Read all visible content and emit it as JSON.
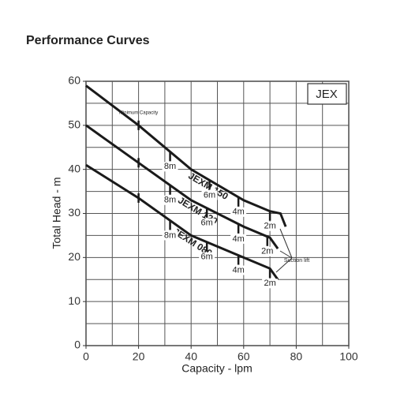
{
  "chart_data": {
    "type": "line",
    "title": "Performance Curves",
    "model": "JEX",
    "xlabel": "Capacity - lpm",
    "ylabel": "Total Head - m",
    "xlim": [
      0,
      100
    ],
    "ylim": [
      0,
      60
    ],
    "xticks": [
      0,
      20,
      40,
      60,
      80,
      100
    ],
    "yticks": [
      0,
      10,
      20,
      30,
      40,
      50,
      60
    ],
    "xgrid": [
      0,
      10,
      20,
      30,
      40,
      50,
      60,
      70,
      80,
      90,
      100
    ],
    "ygrid": [
      0,
      5,
      10,
      15,
      20,
      25,
      30,
      35,
      40,
      45,
      50,
      55,
      60
    ],
    "color": "#1a1a1a",
    "minimum_capacity": {
      "label": "Minimum Capacity",
      "x": 20
    },
    "suction_lift_label": "Suction lift",
    "series": [
      {
        "name": "JEXM 150",
        "x": [
          0,
          20,
          40,
          60,
          70,
          74,
          76
        ],
        "values": [
          59,
          50,
          40,
          33,
          30.5,
          30,
          27
        ],
        "lift_points": [
          {
            "label": "8m",
            "x": 32
          },
          {
            "label": "6m",
            "x": 47
          },
          {
            "label": "4m",
            "x": 58
          },
          {
            "label": "2m",
            "x": 70
          }
        ]
      },
      {
        "name": "JEXM 120",
        "x": [
          0,
          20,
          40,
          60,
          70,
          73
        ],
        "values": [
          50,
          41.5,
          33,
          27,
          24.5,
          22
        ],
        "lift_points": [
          {
            "label": "8m",
            "x": 32
          },
          {
            "label": "6m",
            "x": 46
          },
          {
            "label": "4m",
            "x": 58
          },
          {
            "label": "2m",
            "x": 69
          }
        ]
      },
      {
        "name": "JEXM 080",
        "x": [
          0,
          20,
          40,
          60,
          70,
          73
        ],
        "values": [
          41,
          33.5,
          25,
          20,
          17.5,
          15
        ],
        "lift_points": [
          {
            "label": "8m",
            "x": 32
          },
          {
            "label": "6m",
            "x": 46
          },
          {
            "label": "4m",
            "x": 58
          },
          {
            "label": "2m",
            "x": 70
          }
        ]
      }
    ]
  }
}
